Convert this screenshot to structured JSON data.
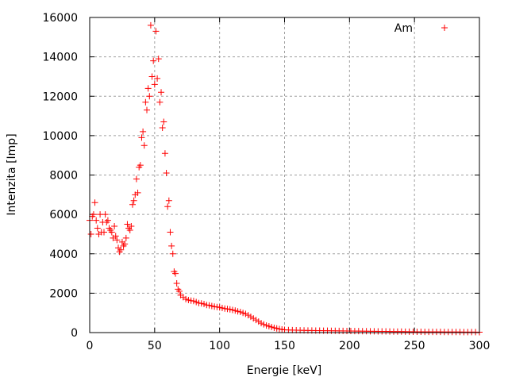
{
  "chart_data": {
    "type": "scatter",
    "title": "",
    "xlabel": "Energie [keV]",
    "ylabel": "Intenzita [Imp]",
    "xlim": [
      0,
      300
    ],
    "ylim": [
      0,
      16000
    ],
    "xticks": [
      "0",
      "50",
      "100",
      "150",
      "200",
      "250",
      "300"
    ],
    "yticks": [
      "0",
      "2000",
      "4000",
      "6000",
      "8000",
      "10000",
      "12000",
      "14000",
      "16000"
    ],
    "grid": true,
    "legend_position": "top-right",
    "marker": "plus",
    "series": [
      {
        "name": "Am",
        "color": "#ff0000",
        "points": [
          [
            0,
            5700
          ],
          [
            1,
            5000
          ],
          [
            2,
            5900
          ],
          [
            3,
            6000
          ],
          [
            4,
            6600
          ],
          [
            5,
            5700
          ],
          [
            6,
            5300
          ],
          [
            7,
            5000
          ],
          [
            8,
            6000
          ],
          [
            9,
            5100
          ],
          [
            10,
            5600
          ],
          [
            11,
            5100
          ],
          [
            12,
            6000
          ],
          [
            13,
            5600
          ],
          [
            14,
            5700
          ],
          [
            15,
            5300
          ],
          [
            16,
            5200
          ],
          [
            17,
            5100
          ],
          [
            18,
            4800
          ],
          [
            19,
            5400
          ],
          [
            20,
            4900
          ],
          [
            21,
            4700
          ],
          [
            22,
            4300
          ],
          [
            23,
            4100
          ],
          [
            24,
            4200
          ],
          [
            25,
            4600
          ],
          [
            26,
            4400
          ],
          [
            27,
            4500
          ],
          [
            28,
            4800
          ],
          [
            29,
            5500
          ],
          [
            30,
            5300
          ],
          [
            31,
            5200
          ],
          [
            32,
            5400
          ],
          [
            33,
            6500
          ],
          [
            34,
            6700
          ],
          [
            35,
            7000
          ],
          [
            36,
            7800
          ],
          [
            37,
            7100
          ],
          [
            38,
            8400
          ],
          [
            39,
            8500
          ],
          [
            40,
            9900
          ],
          [
            41,
            10200
          ],
          [
            42,
            9500
          ],
          [
            43,
            11700
          ],
          [
            44,
            11300
          ],
          [
            45,
            12400
          ],
          [
            46,
            12000
          ],
          [
            47,
            15600
          ],
          [
            48,
            13000
          ],
          [
            49,
            13800
          ],
          [
            50,
            12600
          ],
          [
            51,
            15300
          ],
          [
            52,
            12900
          ],
          [
            53,
            13900
          ],
          [
            54,
            11700
          ],
          [
            55,
            12200
          ],
          [
            56,
            10400
          ],
          [
            57,
            10700
          ],
          [
            58,
            9100
          ],
          [
            59,
            8100
          ],
          [
            60,
            6400
          ],
          [
            61,
            6700
          ],
          [
            62,
            5100
          ],
          [
            63,
            4400
          ],
          [
            64,
            4000
          ],
          [
            65,
            3100
          ],
          [
            66,
            3000
          ],
          [
            67,
            2500
          ],
          [
            68,
            2200
          ],
          [
            69,
            2100
          ],
          [
            70,
            1900
          ],
          [
            72,
            1800
          ],
          [
            74,
            1700
          ],
          [
            76,
            1650
          ],
          [
            78,
            1620
          ],
          [
            80,
            1600
          ],
          [
            82,
            1550
          ],
          [
            84,
            1500
          ],
          [
            86,
            1480
          ],
          [
            88,
            1450
          ],
          [
            90,
            1400
          ],
          [
            92,
            1380
          ],
          [
            94,
            1350
          ],
          [
            96,
            1320
          ],
          [
            98,
            1300
          ],
          [
            100,
            1280
          ],
          [
            102,
            1250
          ],
          [
            104,
            1220
          ],
          [
            106,
            1200
          ],
          [
            108,
            1180
          ],
          [
            110,
            1150
          ],
          [
            112,
            1120
          ],
          [
            114,
            1080
          ],
          [
            116,
            1050
          ],
          [
            118,
            1000
          ],
          [
            120,
            950
          ],
          [
            122,
            880
          ],
          [
            124,
            800
          ],
          [
            126,
            720
          ],
          [
            128,
            640
          ],
          [
            130,
            560
          ],
          [
            132,
            480
          ],
          [
            134,
            420
          ],
          [
            136,
            360
          ],
          [
            138,
            320
          ],
          [
            140,
            280
          ],
          [
            142,
            240
          ],
          [
            144,
            210
          ],
          [
            146,
            180
          ],
          [
            148,
            160
          ],
          [
            150,
            140
          ],
          [
            153,
            130
          ],
          [
            156,
            125
          ],
          [
            159,
            120
          ],
          [
            162,
            115
          ],
          [
            165,
            110
          ],
          [
            168,
            108
          ],
          [
            171,
            105
          ],
          [
            174,
            102
          ],
          [
            177,
            100
          ],
          [
            180,
            98
          ],
          [
            183,
            95
          ],
          [
            186,
            92
          ],
          [
            189,
            90
          ],
          [
            192,
            88
          ],
          [
            195,
            85
          ],
          [
            198,
            82
          ],
          [
            201,
            80
          ],
          [
            204,
            78
          ],
          [
            207,
            75
          ],
          [
            210,
            72
          ],
          [
            213,
            70
          ],
          [
            216,
            68
          ],
          [
            219,
            65
          ],
          [
            222,
            62
          ],
          [
            225,
            60
          ],
          [
            228,
            58
          ],
          [
            231,
            55
          ],
          [
            234,
            52
          ],
          [
            237,
            50
          ],
          [
            240,
            48
          ],
          [
            243,
            46
          ],
          [
            246,
            44
          ],
          [
            249,
            42
          ],
          [
            252,
            40
          ],
          [
            255,
            38
          ],
          [
            258,
            37
          ],
          [
            261,
            36
          ],
          [
            264,
            35
          ],
          [
            267,
            34
          ],
          [
            270,
            33
          ],
          [
            273,
            32
          ],
          [
            276,
            31
          ],
          [
            279,
            30
          ],
          [
            282,
            29
          ],
          [
            285,
            28
          ],
          [
            288,
            27
          ],
          [
            291,
            26
          ],
          [
            294,
            25
          ],
          [
            297,
            24
          ],
          [
            300,
            22
          ]
        ]
      }
    ]
  }
}
